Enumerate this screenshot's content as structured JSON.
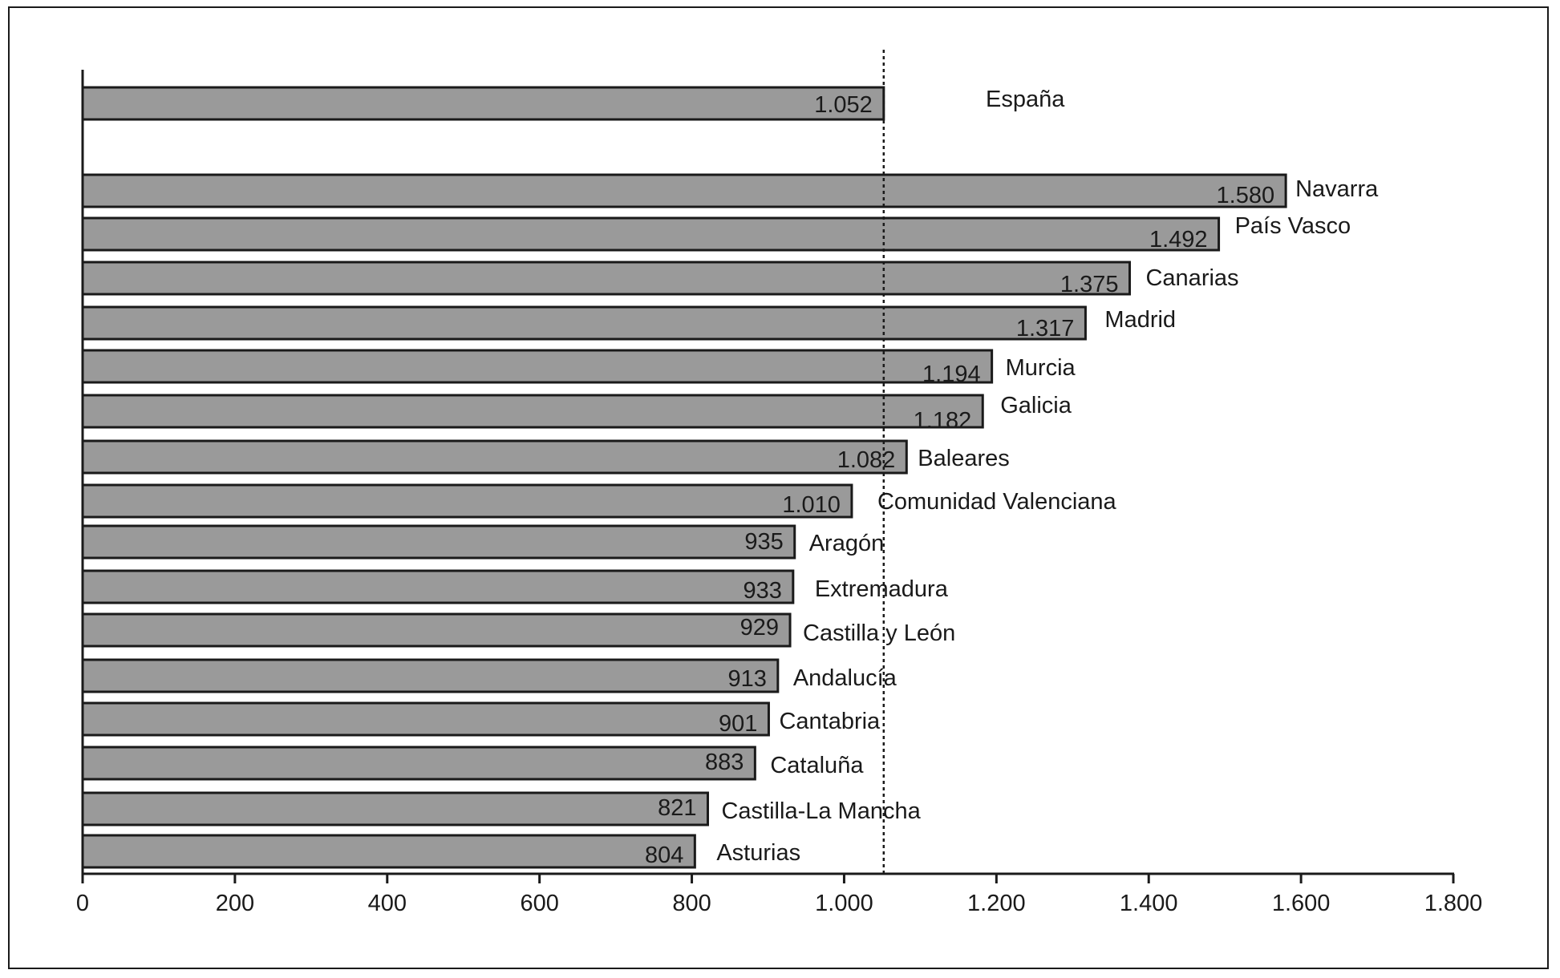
{
  "chart_data": {
    "type": "bar",
    "orientation": "horizontal",
    "reference": {
      "label": "España",
      "value": 1052,
      "value_label": "1.052"
    },
    "bars": [
      {
        "label": "Navarra",
        "value": 1580,
        "value_label": "1.580"
      },
      {
        "label": "País Vasco",
        "value": 1492,
        "value_label": "1.492"
      },
      {
        "label": "Canarias",
        "value": 1375,
        "value_label": "1.375"
      },
      {
        "label": "Madrid",
        "value": 1317,
        "value_label": "1.317"
      },
      {
        "label": "Murcia",
        "value": 1194,
        "value_label": "1.194"
      },
      {
        "label": "Galicia",
        "value": 1182,
        "value_label": "1.182"
      },
      {
        "label": "Baleares",
        "value": 1082,
        "value_label": "1.082"
      },
      {
        "label": "Comunidad Valenciana",
        "value": 1010,
        "value_label": "1.010"
      },
      {
        "label": "Aragón",
        "value": 935,
        "value_label": "935"
      },
      {
        "label": "Extremadura",
        "value": 933,
        "value_label": "933"
      },
      {
        "label": "Castilla y León",
        "value": 929,
        "value_label": "929"
      },
      {
        "label": "Andalucía",
        "value": 913,
        "value_label": "913"
      },
      {
        "label": "Cantabria",
        "value": 901,
        "value_label": "901"
      },
      {
        "label": "Cataluña",
        "value": 883,
        "value_label": "883"
      },
      {
        "label": "Castilla-La Mancha",
        "value": 821,
        "value_label": "821"
      },
      {
        "label": "Asturias",
        "value": 804,
        "value_label": "804"
      }
    ],
    "xlim": [
      0,
      1800
    ],
    "x_ticks": [
      0,
      200,
      400,
      600,
      800,
      1000,
      1200,
      1400,
      1600,
      1800
    ],
    "x_tick_labels": [
      "0",
      "200",
      "400",
      "600",
      "800",
      "1.000",
      "1.200",
      "1.400",
      "1.600",
      "1.800"
    ],
    "reference_line_value": 1052,
    "colors": {
      "bar_fill": "#9a9a9a",
      "bar_stroke": "#1a1a1a",
      "text": "#1a1a1a"
    },
    "grid": false,
    "legend": "none",
    "title": "",
    "xlabel": "",
    "ylabel": ""
  }
}
